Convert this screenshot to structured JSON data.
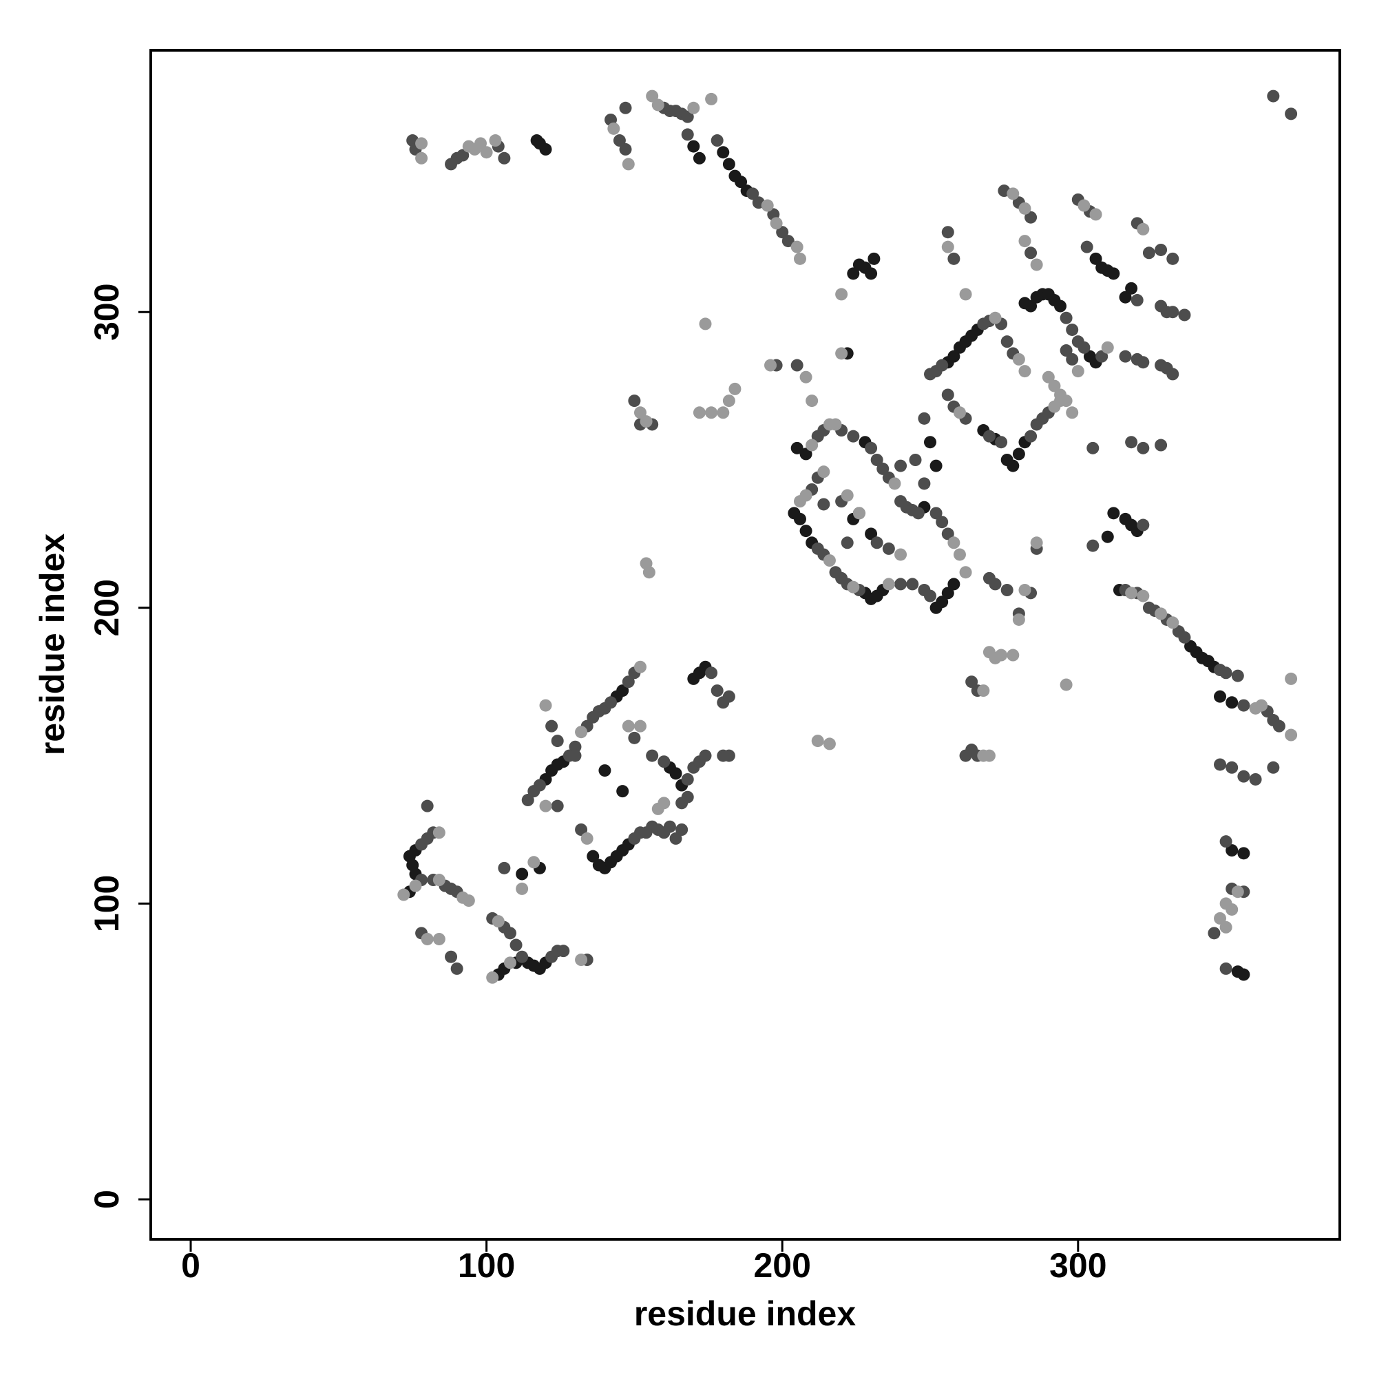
{
  "chart_data": {
    "type": "scatter",
    "xlabel": "residue index",
    "ylabel": "residue index",
    "xlim": [
      -13.5,
      388.5
    ],
    "ylim": [
      -13.5,
      388.5
    ],
    "xticks": [
      0,
      100,
      200,
      300
    ],
    "yticks": [
      0,
      100,
      200,
      300
    ],
    "grid": false,
    "series": [
      {
        "color": "#1a1a1a",
        "x": [
          117,
          118,
          120,
          170,
          172,
          180,
          182,
          184,
          186,
          188,
          224,
          226,
          228,
          230,
          231,
          282,
          284,
          286,
          288,
          290,
          306,
          308,
          310,
          312,
          316,
          318,
          256,
          258,
          260,
          262,
          264,
          266,
          276,
          278,
          280,
          282,
          268,
          272,
          312,
          316,
          318,
          320,
          310,
          338,
          340,
          342,
          344,
          346,
          348,
          352,
          352,
          356,
          354,
          356,
          205,
          208,
          206,
          208,
          210,
          204,
          228,
          230,
          232,
          234,
          252,
          254,
          256,
          258,
          224,
          226,
          230,
          250,
          252,
          222,
          74,
          76,
          75,
          76,
          74,
          104,
          106,
          110,
          114,
          116,
          118,
          120,
          120,
          122,
          124,
          126,
          140,
          146,
          112,
          118,
          136,
          138,
          140,
          142,
          144,
          146,
          148,
          162,
          164,
          166,
          170,
          172,
          174,
          144,
          146,
          228,
          248,
          292,
          294,
          304,
          306,
          314
        ],
        "values": [
          358,
          357,
          355,
          356,
          352,
          354,
          350,
          346,
          344,
          341,
          313,
          316,
          315,
          313,
          318,
          303,
          302,
          305,
          306,
          306,
          318,
          315,
          314,
          313,
          305,
          308,
          283,
          285,
          288,
          290,
          292,
          294,
          250,
          248,
          252,
          256,
          260,
          257,
          232,
          230,
          228,
          226,
          224,
          187,
          185,
          183,
          182,
          180,
          170,
          168,
          118,
          117,
          77,
          76,
          254,
          252,
          230,
          226,
          222,
          232,
          205,
          203,
          204,
          206,
          200,
          202,
          205,
          208,
          230,
          232,
          225,
          256,
          248,
          286,
          116,
          118,
          113,
          110,
          104,
          76,
          78,
          80,
          80,
          79,
          78,
          80,
          142,
          145,
          147,
          148,
          145,
          138,
          110,
          112,
          116,
          113,
          112,
          114,
          116,
          118,
          120,
          146,
          144,
          140,
          176,
          178,
          180,
          170,
          172,
          256,
          234,
          304,
          302,
          285,
          283,
          206
        ]
      },
      {
        "color": "#4d4d4d",
        "x": [
          75,
          76,
          88,
          90,
          92,
          104,
          106,
          142,
          145,
          147,
          147,
          160,
          162,
          164,
          166,
          168,
          168,
          178,
          190,
          192,
          197,
          200,
          202,
          366,
          372,
          256,
          258,
          275,
          280,
          284,
          284,
          300,
          304,
          303,
          320,
          324,
          328,
          332,
          296,
          298,
          300,
          302,
          308,
          296,
          298,
          250,
          252,
          254,
          268,
          270,
          274,
          276,
          278,
          256,
          258,
          262,
          284,
          286,
          288,
          290,
          270,
          274,
          305,
          322,
          305,
          316,
          320,
          322,
          328,
          330,
          332,
          320,
          328,
          330,
          332,
          336,
          318,
          322,
          328,
          316,
          320,
          324,
          326,
          330,
          334,
          336,
          348,
          350,
          354,
          356,
          364,
          366,
          368,
          348,
          352,
          356,
          360,
          366,
          350,
          352,
          356,
          346,
          350,
          212,
          214,
          220,
          224,
          230,
          232,
          234,
          236,
          240,
          242,
          244,
          246,
          252,
          254,
          256,
          250,
          248,
          244,
          240,
          226,
          222,
          220,
          218,
          214,
          212,
          210,
          212,
          222,
          232,
          236,
          245,
          248,
          214,
          220,
          205,
          198,
          248,
          240,
          150,
          152,
          156,
          264,
          266,
          280,
          284,
          270,
          272,
          276,
          286,
          78,
          78,
          80,
          82,
          80,
          82,
          86,
          88,
          90,
          78,
          88,
          90,
          102,
          106,
          108,
          110,
          112,
          122,
          124,
          126,
          134,
          106,
          116,
          114,
          118,
          128,
          130,
          134,
          136,
          138,
          140,
          142,
          148,
          150,
          150,
          124,
          132,
          150,
          152,
          154,
          156,
          158,
          160,
          162,
          164,
          166,
          130,
          122,
          124,
          156,
          160,
          168,
          170,
          172,
          174,
          166,
          168,
          176,
          178,
          180,
          182,
          180,
          182,
          264,
          266,
          262
        ],
        "values": [
          358,
          355,
          350,
          352,
          353,
          356,
          352,
          365,
          358,
          355,
          369,
          369,
          368,
          368,
          367,
          366,
          360,
          358,
          340,
          337,
          333,
          327,
          324,
          373,
          367,
          327,
          318,
          341,
          337,
          332,
          320,
          338,
          334,
          322,
          330,
          320,
          321,
          318,
          298,
          294,
          290,
          288,
          285,
          287,
          284,
          279,
          280,
          282,
          296,
          297,
          296,
          290,
          286,
          272,
          268,
          264,
          258,
          262,
          264,
          266,
          258,
          256,
          254,
          228,
          221,
          285,
          284,
          283,
          282,
          281,
          279,
          304,
          302,
          300,
          300,
          299,
          256,
          254,
          255,
          206,
          205,
          200,
          199,
          196,
          192,
          190,
          179,
          178,
          177,
          167,
          165,
          162,
          160,
          147,
          146,
          143,
          142,
          146,
          121,
          105,
          104,
          90,
          78,
          258,
          260,
          260,
          258,
          254,
          250,
          247,
          244,
          236,
          234,
          233,
          232,
          232,
          229,
          225,
          204,
          206,
          208,
          208,
          206,
          208,
          210,
          212,
          218,
          220,
          240,
          244,
          222,
          222,
          220,
          250,
          242,
          235,
          236,
          282,
          282,
          264,
          248,
          270,
          262,
          262,
          152,
          150,
          198,
          205,
          210,
          208,
          206,
          220,
          108,
          120,
          122,
          124,
          133,
          108,
          106,
          105,
          104,
          90,
          82,
          78,
          95,
          92,
          90,
          86,
          82,
          82,
          84,
          84,
          81,
          112,
          138,
          135,
          140,
          150,
          153,
          160,
          163,
          165,
          166,
          168,
          175,
          178,
          156,
          133,
          125,
          122,
          124,
          124,
          126,
          125,
          124,
          126,
          122,
          125,
          150,
          160,
          155,
          150,
          148,
          142,
          146,
          148,
          150,
          134,
          136,
          178,
          172,
          168,
          170,
          150,
          150,
          175,
          172,
          150
        ]
      },
      {
        "color": "#9a9a9a",
        "x": [
          78,
          78,
          94,
          96,
          98,
          100,
          103,
          143,
          148,
          156,
          158,
          170,
          176,
          195,
          198,
          205,
          206,
          220,
          256,
          262,
          278,
          282,
          282,
          286,
          302,
          306,
          322,
          294,
          296,
          298,
          290,
          292,
          300,
          310,
          272,
          280,
          282,
          260,
          292,
          294,
          318,
          322,
          328,
          332,
          360,
          362,
          372,
          372,
          354,
          350,
          348,
          350,
          352,
          210,
          216,
          218,
          238,
          258,
          260,
          262,
          236,
          224,
          216,
          206,
          208,
          214,
          240,
          222,
          226,
          210,
          208,
          196,
          220,
          180,
          182,
          184,
          176,
          172,
          174,
          152,
          154,
          154,
          155,
          270,
          272,
          274,
          278,
          268,
          296,
          280,
          282,
          268,
          270,
          212,
          216,
          286,
          72,
          76,
          84,
          84,
          92,
          94,
          80,
          84,
          104,
          108,
          102,
          132,
          116,
          112,
          152,
          148,
          152,
          120,
          134,
          132,
          120,
          158,
          160
        ],
        "values": [
          357,
          352,
          356,
          355,
          357,
          354,
          358,
          362,
          350,
          373,
          370,
          369,
          372,
          336,
          330,
          322,
          318,
          306,
          322,
          306,
          340,
          335,
          324,
          316,
          336,
          333,
          328,
          272,
          270,
          266,
          278,
          275,
          280,
          288,
          298,
          284,
          280,
          266,
          268,
          270,
          205,
          204,
          198,
          195,
          166,
          167,
          157,
          176,
          104,
          100,
          95,
          92,
          98,
          255,
          262,
          262,
          242,
          222,
          218,
          212,
          208,
          207,
          216,
          236,
          238,
          246,
          218,
          238,
          232,
          270,
          278,
          282,
          286,
          266,
          270,
          274,
          266,
          266,
          296,
          266,
          263,
          215,
          212,
          185,
          183,
          184,
          184,
          172,
          174,
          196,
          206,
          150,
          150,
          155,
          154,
          222,
          103,
          106,
          124,
          108,
          102,
          101,
          88,
          88,
          94,
          80,
          75,
          81,
          114,
          105,
          180,
          160,
          160,
          133,
          122,
          158,
          167,
          132,
          134
        ]
      }
    ]
  }
}
